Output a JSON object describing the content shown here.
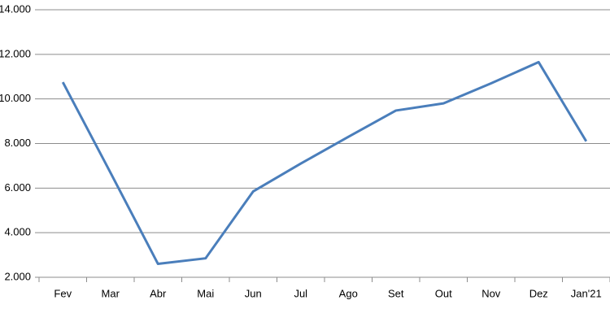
{
  "chart_data": {
    "type": "line",
    "categories": [
      "Fev",
      "Mar",
      "Abr",
      "Mai",
      "Jun",
      "Jul",
      "Ago",
      "Set",
      "Out",
      "Nov",
      "Dez",
      "Jan'21"
    ],
    "series": [
      {
        "name": "Series1",
        "color": "#4a7ebb",
        "values": [
          10750,
          6700,
          2600,
          2850,
          5850,
          7100,
          8300,
          9480,
          9800,
          10700,
          11650,
          8100
        ]
      }
    ],
    "ylim": [
      2000,
      14000
    ],
    "yticks": [
      {
        "value": 2000,
        "label": "2.000"
      },
      {
        "value": 4000,
        "label": "4.000"
      },
      {
        "value": 6000,
        "label": "6.000"
      },
      {
        "value": 8000,
        "label": "8.000"
      },
      {
        "value": 10000,
        "label": "10.000"
      },
      {
        "value": 12000,
        "label": "12.000"
      },
      {
        "value": 14000,
        "label": "14.000"
      }
    ],
    "grid": true
  }
}
